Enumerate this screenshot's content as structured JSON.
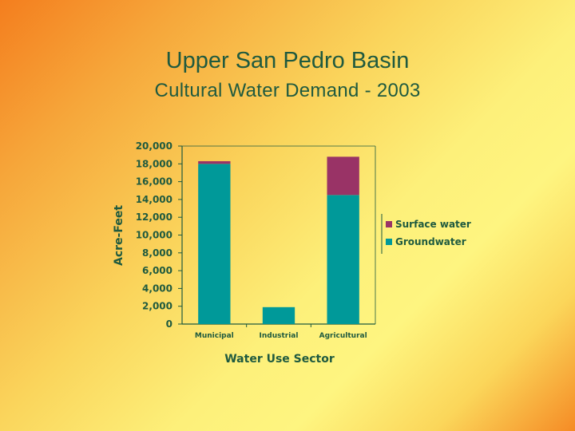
{
  "slide": {
    "title": "Upper San Pedro Basin",
    "subtitle": "Cultural Water Demand - 2003"
  },
  "chart_data": {
    "type": "bar",
    "stacked": true,
    "categories": [
      "Municipal",
      "Industrial",
      "Agricultural"
    ],
    "series": [
      {
        "name": "Groundwater",
        "values": [
          18000,
          1900,
          14500
        ],
        "color": "#009999"
      },
      {
        "name": "Surface water",
        "values": [
          300,
          0,
          4300
        ],
        "color": "#993366"
      }
    ],
    "xlabel": "Water Use Sector",
    "ylabel": "Acre-Feet",
    "ylim": [
      0,
      20000
    ],
    "yticks": [
      0,
      2000,
      4000,
      6000,
      8000,
      10000,
      12000,
      14000,
      16000,
      18000,
      20000
    ],
    "ytick_labels": [
      "0",
      "2,000",
      "4,000",
      "6,000",
      "8,000",
      "10,000",
      "12,000",
      "14,000",
      "16,000",
      "18,000",
      "20,000"
    ],
    "legend_order": [
      "Surface water",
      "Groundwater"
    ],
    "legend_position": "right",
    "grid": false,
    "axis_color": "#1f5a3f"
  }
}
